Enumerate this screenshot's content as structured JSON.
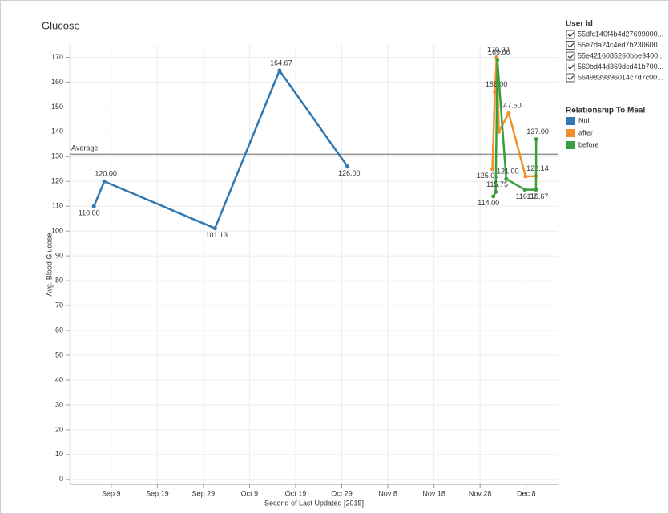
{
  "chart_data": {
    "type": "line",
    "title": "Glucose",
    "x_label": "Second of Last Updated [2015]",
    "y_label": "Avg. Blood Glucose",
    "xlim": [
      "2015-08-31T00:00",
      "2015-12-15T00:00"
    ],
    "xticks": [
      {
        "value": "2015-09-09T00:00",
        "label": "Sep 9"
      },
      {
        "value": "2015-09-19T00:00",
        "label": "Sep 19"
      },
      {
        "value": "2015-09-29T00:00",
        "label": "Sep 29"
      },
      {
        "value": "2015-10-09T00:00",
        "label": "Oct 9"
      },
      {
        "value": "2015-10-19T00:00",
        "label": "Oct 19"
      },
      {
        "value": "2015-10-29T00:00",
        "label": "Oct 29"
      },
      {
        "value": "2015-11-08T00:00",
        "label": "Nov 8"
      },
      {
        "value": "2015-11-18T00:00",
        "label": "Nov 18"
      },
      {
        "value": "2015-11-28T00:00",
        "label": "Nov 28"
      },
      {
        "value": "2015-12-08T00:00",
        "label": "Dec 8"
      }
    ],
    "ylim": [
      -2,
      175
    ],
    "yticks": [
      0,
      10,
      20,
      30,
      40,
      50,
      60,
      70,
      80,
      90,
      100,
      110,
      120,
      130,
      140,
      150,
      160,
      170
    ],
    "grid": true,
    "reference_line": {
      "label": "Average",
      "value": 131
    },
    "filter_legend": {
      "title": "User Id",
      "items": [
        "55dfc140f4b4d27699000...",
        "55e7da24c4ed7b230600...",
        "55e4216085260bbe9400...",
        "560bd44d369dcd41b700...",
        "5649839896014c7d7c00..."
      ]
    },
    "legend_title": "Relationship To Meal",
    "series": [
      {
        "name": "Null",
        "color": "#2f78b2",
        "x": [
          "2015-09-05T06:00",
          "2015-09-07T12:00",
          "2015-10-01T12:00",
          "2015-10-15T12:00",
          "2015-10-30T06:00"
        ],
        "values": [
          110,
          120,
          101.13,
          164.67,
          126
        ],
        "value_labels": [
          "110.00",
          "120.00",
          "101.13",
          "164.67",
          "126.00"
        ]
      },
      {
        "name": "after",
        "color": "#f28e2b",
        "x": [
          "2015-11-30T16:00",
          "2015-12-01T05:00",
          "2015-12-01T14:00",
          "2015-12-02T02:00",
          "2015-12-04T05:00",
          "2015-12-07T21:00",
          "2015-12-10T03:00"
        ],
        "values": [
          125,
          156,
          170,
          140,
          147.5,
          122,
          122.14
        ],
        "value_labels": [
          "125.00",
          "156.00",
          "170.00",
          null,
          "147.50",
          null,
          "122.14"
        ]
      },
      {
        "name": "before",
        "color": "#3a9e3a",
        "x": [
          "2015-11-30T21:00",
          "2015-12-01T09:00",
          "2015-12-01T18:00",
          "2015-12-03T16:00",
          "2015-12-07T17:00",
          "2015-12-10T03:00",
          "2015-12-10T04:00"
        ],
        "values": [
          114,
          115.75,
          169,
          121,
          116.67,
          116.67,
          137
        ],
        "value_labels": [
          "114.00",
          "115.75",
          "169.00",
          "121.00",
          "116.67",
          "116.67",
          "137.00"
        ]
      }
    ]
  }
}
